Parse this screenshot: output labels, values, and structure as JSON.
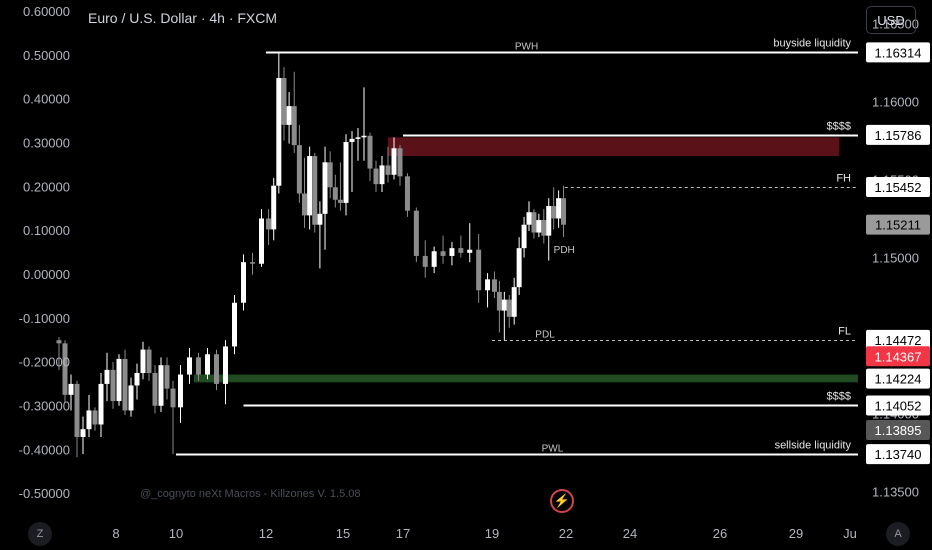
{
  "header": {
    "title": "Euro / U.S. Dollar · 4h · FXCM",
    "currency_button": "USD"
  },
  "watermark": "@_cognyto neXt Macros - Killzones V. 1.5.08",
  "bottom_buttons": {
    "left": "Z",
    "right": "A"
  },
  "icons": {
    "alert": "lightning-bolt-icon"
  },
  "colors": {
    "bull": "#ffffff",
    "bear": "#8c8c8c",
    "bearish_zone": "#5a1118",
    "bullish_zone": "#1f4a22",
    "current_price": "#f23645"
  },
  "chart_data": {
    "type": "candlestick",
    "title": "Euro / U.S. Dollar · 4h · FXCM",
    "right_axis": {
      "range": [
        1.1335,
        1.1665
      ],
      "ticks": [
        "1.16500",
        "1.16000",
        "1.15500",
        "1.15000",
        "1.14500",
        "1.14000",
        "1.13500"
      ]
    },
    "left_axis": {
      "range": [
        -0.5475,
        0.6275
      ],
      "ticks": [
        "0.60000",
        "0.50000",
        "0.40000",
        "0.30000",
        "0.20000",
        "0.10000",
        "0.00000",
        "-0.10000",
        "-0.20000",
        "-0.30000",
        "-0.40000",
        "-0.50000"
      ]
    },
    "x_axis": {
      "ticks": [
        "8",
        "10",
        "12",
        "15",
        "17",
        "19",
        "22",
        "24",
        "26",
        "29",
        "Ju"
      ]
    },
    "price_labels": [
      {
        "value": 1.16314,
        "text": "1.16314",
        "style": "white"
      },
      {
        "value": 1.15786,
        "text": "1.15786",
        "style": "white"
      },
      {
        "value": 1.15452,
        "text": "1.15452",
        "style": "white"
      },
      {
        "value": 1.15211,
        "text": "1.15211",
        "style": "grey"
      },
      {
        "value": 1.14472,
        "text": "1.14472",
        "style": "white"
      },
      {
        "value": 1.14367,
        "text": "1.14367",
        "style": "red"
      },
      {
        "value": 1.14224,
        "text": "1.14224",
        "style": "white"
      },
      {
        "value": 1.14052,
        "text": "1.14052",
        "style": "white"
      },
      {
        "value": 1.13895,
        "text": "1.13895",
        "style": "darkgrey"
      },
      {
        "value": 1.1374,
        "text": "1.13740",
        "style": "white"
      }
    ],
    "levels": [
      {
        "value": 1.16314,
        "from": 12.0,
        "style": "solid",
        "center_label": "PWH",
        "center_at": 20.4,
        "right_label": "buyside liquidity"
      },
      {
        "value": 1.15786,
        "from": 17.0,
        "style": "solid",
        "center_label": "",
        "right_label": "$$$$"
      },
      {
        "value": 1.15452,
        "from": 21.95,
        "style": "dashed",
        "center_label": "",
        "right_label": "FH"
      },
      {
        "value": 1.14472,
        "from": 19.0,
        "style": "dashed",
        "center_label": "PDL",
        "center_at": 21.15,
        "right_label": "FL"
      },
      {
        "value": 1.14052,
        "from": 11.5,
        "style": "solid",
        "center_label": "",
        "right_label": "$$$$"
      },
      {
        "value": 1.1374,
        "from": 10.0,
        "style": "solid",
        "center_label": "PWL",
        "center_at": 21.45,
        "right_label": "sellside liquidity"
      }
    ],
    "small_labels": [
      {
        "text": "PDH",
        "x": 21.5,
        "value": 1.1503
      }
    ],
    "zones": [
      {
        "type": "bearish",
        "from": 16.5,
        "to": 30.6,
        "top": 1.1577,
        "bottom": 1.1565
      },
      {
        "type": "bullish",
        "from": 10.4,
        "to": 35.5,
        "top": 1.1425,
        "bottom": 1.142
      }
    ],
    "candles": [
      {
        "x": 6.1,
        "o": 1.1447,
        "h": 1.1449,
        "l": 1.1428,
        "c": 1.1445
      },
      {
        "x": 6.3,
        "o": 1.1445,
        "h": 1.1447,
        "l": 1.1407,
        "c": 1.1412
      },
      {
        "x": 6.5,
        "o": 1.1412,
        "h": 1.1425,
        "l": 1.1402,
        "c": 1.1419
      },
      {
        "x": 6.7,
        "o": 1.1419,
        "h": 1.1421,
        "l": 1.1372,
        "c": 1.1385
      },
      {
        "x": 6.9,
        "o": 1.1385,
        "h": 1.1398,
        "l": 1.1374,
        "c": 1.139
      },
      {
        "x": 7.1,
        "o": 1.139,
        "h": 1.1412,
        "l": 1.1385,
        "c": 1.1402
      },
      {
        "x": 7.3,
        "o": 1.1402,
        "h": 1.1404,
        "l": 1.1389,
        "c": 1.1393
      },
      {
        "x": 7.5,
        "o": 1.1393,
        "h": 1.1426,
        "l": 1.1385,
        "c": 1.1419
      },
      {
        "x": 7.7,
        "o": 1.1419,
        "h": 1.1439,
        "l": 1.1408,
        "c": 1.1428
      },
      {
        "x": 7.9,
        "o": 1.1428,
        "h": 1.1433,
        "l": 1.1403,
        "c": 1.1408
      },
      {
        "x": 8.1,
        "o": 1.1408,
        "h": 1.1438,
        "l": 1.1405,
        "c": 1.1435
      },
      {
        "x": 8.3,
        "o": 1.1435,
        "h": 1.1441,
        "l": 1.1399,
        "c": 1.1402
      },
      {
        "x": 8.5,
        "o": 1.1402,
        "h": 1.1423,
        "l": 1.1398,
        "c": 1.1418
      },
      {
        "x": 8.7,
        "o": 1.1418,
        "h": 1.1432,
        "l": 1.1409,
        "c": 1.1426
      },
      {
        "x": 8.9,
        "o": 1.1426,
        "h": 1.1446,
        "l": 1.1422,
        "c": 1.1441
      },
      {
        "x": 9.1,
        "o": 1.1441,
        "h": 1.1443,
        "l": 1.1421,
        "c": 1.1426
      },
      {
        "x": 9.3,
        "o": 1.1426,
        "h": 1.1431,
        "l": 1.14,
        "c": 1.1405
      },
      {
        "x": 9.5,
        "o": 1.1405,
        "h": 1.1436,
        "l": 1.1401,
        "c": 1.1431
      },
      {
        "x": 9.7,
        "o": 1.1431,
        "h": 1.1436,
        "l": 1.1409,
        "c": 1.1416
      },
      {
        "x": 9.9,
        "o": 1.1416,
        "h": 1.1421,
        "l": 1.1374,
        "c": 1.1404
      },
      {
        "x": 10.1,
        "o": 1.1404,
        "h": 1.1431,
        "l": 1.1394,
        "c": 1.1425
      },
      {
        "x": 10.3,
        "o": 1.1425,
        "h": 1.1442,
        "l": 1.1419,
        "c": 1.1436
      },
      {
        "x": 10.5,
        "o": 1.1436,
        "h": 1.1439,
        "l": 1.1421,
        "c": 1.1425
      },
      {
        "x": 10.7,
        "o": 1.1425,
        "h": 1.1442,
        "l": 1.1422,
        "c": 1.1438
      },
      {
        "x": 10.9,
        "o": 1.1438,
        "h": 1.1441,
        "l": 1.1415,
        "c": 1.1419
      },
      {
        "x": 11.1,
        "o": 1.1419,
        "h": 1.1447,
        "l": 1.1406,
        "c": 1.1443
      },
      {
        "x": 11.3,
        "o": 1.1443,
        "h": 1.1476,
        "l": 1.1438,
        "c": 1.1471
      },
      {
        "x": 11.5,
        "o": 1.1471,
        "h": 1.1502,
        "l": 1.1466,
        "c": 1.1497
      },
      {
        "x": 11.7,
        "o": 1.1497,
        "h": 1.1503,
        "l": 1.1489,
        "c": 1.1496
      },
      {
        "x": 11.9,
        "o": 1.1496,
        "h": 1.1531,
        "l": 1.1494,
        "c": 1.1525
      },
      {
        "x": 12.1,
        "o": 1.1525,
        "h": 1.1531,
        "l": 1.1508,
        "c": 1.1518
      },
      {
        "x": 12.3,
        "o": 1.1518,
        "h": 1.1551,
        "l": 1.1511,
        "c": 1.1546
      },
      {
        "x": 12.5,
        "o": 1.1546,
        "h": 1.1631,
        "l": 1.1541,
        "c": 1.1615
      },
      {
        "x": 12.7,
        "o": 1.1615,
        "h": 1.1622,
        "l": 1.1575,
        "c": 1.1585
      },
      {
        "x": 12.9,
        "o": 1.1585,
        "h": 1.1606,
        "l": 1.1573,
        "c": 1.1597
      },
      {
        "x": 13.1,
        "o": 1.1597,
        "h": 1.1619,
        "l": 1.1567,
        "c": 1.1572
      },
      {
        "x": 13.3,
        "o": 1.1572,
        "h": 1.1585,
        "l": 1.1535,
        "c": 1.1541
      },
      {
        "x": 13.5,
        "o": 1.1541,
        "h": 1.1564,
        "l": 1.1519,
        "c": 1.1527
      },
      {
        "x": 13.7,
        "o": 1.1527,
        "h": 1.1571,
        "l": 1.1518,
        "c": 1.1565
      },
      {
        "x": 13.9,
        "o": 1.1565,
        "h": 1.1567,
        "l": 1.1516,
        "c": 1.1521
      },
      {
        "x": 14.1,
        "o": 1.1521,
        "h": 1.1536,
        "l": 1.1493,
        "c": 1.1528
      },
      {
        "x": 14.3,
        "o": 1.1528,
        "h": 1.1571,
        "l": 1.1505,
        "c": 1.1561
      },
      {
        "x": 14.5,
        "o": 1.1561,
        "h": 1.1568,
        "l": 1.1538,
        "c": 1.1545
      },
      {
        "x": 14.7,
        "o": 1.1545,
        "h": 1.1553,
        "l": 1.1532,
        "c": 1.1537
      },
      {
        "x": 14.9,
        "o": 1.1537,
        "h": 1.1561,
        "l": 1.153,
        "c": 1.1535
      },
      {
        "x": 15.1,
        "o": 1.1535,
        "h": 1.1579,
        "l": 1.1527,
        "c": 1.1574
      },
      {
        "x": 15.3,
        "o": 1.1574,
        "h": 1.1581,
        "l": 1.1542,
        "c": 1.1576
      },
      {
        "x": 15.5,
        "o": 1.1576,
        "h": 1.1583,
        "l": 1.1562,
        "c": 1.1577
      },
      {
        "x": 15.7,
        "o": 1.1577,
        "h": 1.1609,
        "l": 1.1562,
        "c": 1.1578
      },
      {
        "x": 15.9,
        "o": 1.1578,
        "h": 1.158,
        "l": 1.1549,
        "c": 1.1557
      },
      {
        "x": 16.1,
        "o": 1.1557,
        "h": 1.1562,
        "l": 1.1542,
        "c": 1.1547
      },
      {
        "x": 16.3,
        "o": 1.1547,
        "h": 1.1565,
        "l": 1.1542,
        "c": 1.1559
      },
      {
        "x": 16.5,
        "o": 1.1559,
        "h": 1.1571,
        "l": 1.1548,
        "c": 1.1553
      },
      {
        "x": 16.7,
        "o": 1.1553,
        "h": 1.1577,
        "l": 1.155,
        "c": 1.157
      },
      {
        "x": 16.9,
        "o": 1.157,
        "h": 1.1572,
        "l": 1.1546,
        "c": 1.1552
      },
      {
        "x": 17.1,
        "o": 1.1552,
        "h": 1.1554,
        "l": 1.1526,
        "c": 1.153
      },
      {
        "x": 17.3,
        "o": 1.153,
        "h": 1.1532,
        "l": 1.1497,
        "c": 1.1501
      },
      {
        "x": 17.5,
        "o": 1.1501,
        "h": 1.1511,
        "l": 1.1487,
        "c": 1.1494
      },
      {
        "x": 17.7,
        "o": 1.1494,
        "h": 1.1507,
        "l": 1.149,
        "c": 1.1504
      },
      {
        "x": 17.9,
        "o": 1.1504,
        "h": 1.1514,
        "l": 1.1496,
        "c": 1.1501
      },
      {
        "x": 18.1,
        "o": 1.1501,
        "h": 1.151,
        "l": 1.1495,
        "c": 1.1506
      },
      {
        "x": 18.3,
        "o": 1.1506,
        "h": 1.1514,
        "l": 1.15,
        "c": 1.1503
      },
      {
        "x": 18.5,
        "o": 1.1503,
        "h": 1.1522,
        "l": 1.1497,
        "c": 1.1505
      },
      {
        "x": 18.7,
        "o": 1.1505,
        "h": 1.1515,
        "l": 1.1471,
        "c": 1.1479
      },
      {
        "x": 18.9,
        "o": 1.1479,
        "h": 1.149,
        "l": 1.1468,
        "c": 1.1486
      },
      {
        "x": 19.1,
        "o": 1.1486,
        "h": 1.1491,
        "l": 1.1474,
        "c": 1.1478
      },
      {
        "x": 19.3,
        "o": 1.1478,
        "h": 1.1485,
        "l": 1.1452,
        "c": 1.1466
      },
      {
        "x": 19.5,
        "o": 1.1466,
        "h": 1.1478,
        "l": 1.1447,
        "c": 1.1473
      },
      {
        "x": 19.7,
        "o": 1.1473,
        "h": 1.1476,
        "l": 1.1455,
        "c": 1.1462
      },
      {
        "x": 19.9,
        "o": 1.1462,
        "h": 1.1487,
        "l": 1.1457,
        "c": 1.1481
      },
      {
        "x": 20.1,
        "o": 1.1481,
        "h": 1.1513,
        "l": 1.1476,
        "c": 1.1506
      },
      {
        "x": 20.3,
        "o": 1.1506,
        "h": 1.1526,
        "l": 1.15,
        "c": 1.1521
      },
      {
        "x": 20.5,
        "o": 1.1521,
        "h": 1.1536,
        "l": 1.1517,
        "c": 1.1529
      },
      {
        "x": 20.7,
        "o": 1.1529,
        "h": 1.1531,
        "l": 1.1512,
        "c": 1.1516
      },
      {
        "x": 20.9,
        "o": 1.1516,
        "h": 1.1528,
        "l": 1.1513,
        "c": 1.1524
      },
      {
        "x": 21.1,
        "o": 1.1524,
        "h": 1.1531,
        "l": 1.1509,
        "c": 1.1514
      },
      {
        "x": 21.3,
        "o": 1.1514,
        "h": 1.1538,
        "l": 1.1498,
        "c": 1.1533
      },
      {
        "x": 21.5,
        "o": 1.1533,
        "h": 1.1545,
        "l": 1.1518,
        "c": 1.1525
      },
      {
        "x": 21.7,
        "o": 1.1525,
        "h": 1.1543,
        "l": 1.1519,
        "c": 1.1538
      },
      {
        "x": 21.9,
        "o": 1.1538,
        "h": 1.1546,
        "l": 1.1513,
        "c": 1.1521
      }
    ]
  }
}
